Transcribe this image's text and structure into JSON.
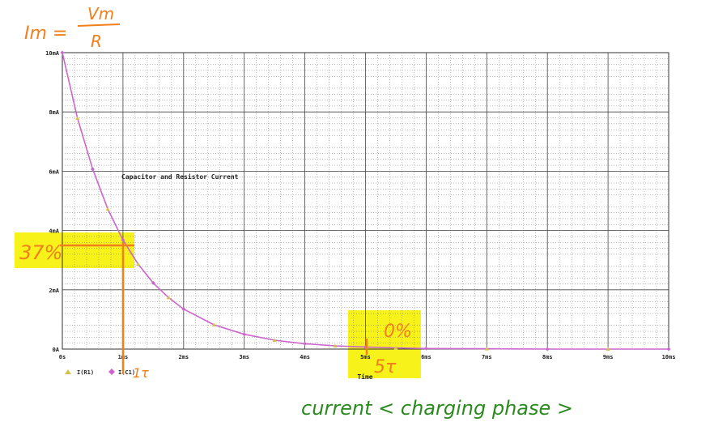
{
  "chart_data": {
    "type": "line",
    "title": "Capacitor and Resistor Current",
    "xlabel": "Time",
    "ylabel": "",
    "x_unit": "ms",
    "y_unit": "mA",
    "xlim": [
      0,
      10
    ],
    "ylim": [
      0,
      10
    ],
    "grid": true,
    "x_ticks": [
      "0s",
      "1ms",
      "2ms",
      "3ms",
      "4ms",
      "5ms",
      "6ms",
      "7ms",
      "8ms",
      "9ms",
      "10ms"
    ],
    "y_ticks": [
      "0A",
      "2mA",
      "4mA",
      "6mA",
      "8mA",
      "10mA"
    ],
    "legend": [
      {
        "label": "I(R1)",
        "color": "#d4c24a",
        "marker": "triangle"
      },
      {
        "label": "I(C1)",
        "color": "#cc66cc",
        "marker": "diamond"
      }
    ],
    "legend_position": "bottom-left",
    "series": [
      {
        "name": "I(C1)",
        "color": "#cc66cc",
        "x": [
          0,
          0.25,
          0.5,
          0.75,
          1,
          1.25,
          1.5,
          1.75,
          2,
          2.5,
          3,
          3.5,
          4,
          4.5,
          5,
          5.5,
          6,
          7,
          8,
          9,
          10
        ],
        "y": [
          10,
          7.79,
          6.07,
          4.72,
          3.68,
          2.87,
          2.23,
          1.74,
          1.35,
          0.82,
          0.5,
          0.3,
          0.18,
          0.11,
          0.07,
          0.04,
          0.02,
          0.01,
          0,
          0,
          0
        ]
      },
      {
        "name": "I(R1)",
        "color": "#d4c24a",
        "x": [
          0,
          0.25,
          0.5,
          0.75,
          1,
          1.25,
          1.5,
          1.75,
          2,
          2.5,
          3,
          3.5,
          4,
          4.5,
          5,
          5.5,
          6,
          7,
          8,
          9,
          10
        ],
        "y": [
          10,
          7.79,
          6.07,
          4.72,
          3.68,
          2.87,
          2.23,
          1.74,
          1.35,
          0.82,
          0.5,
          0.3,
          0.18,
          0.11,
          0.07,
          0.04,
          0.02,
          0.01,
          0,
          0,
          0
        ]
      }
    ],
    "annotations": {
      "formula_lhs": "Im =",
      "formula_num": "Vm",
      "formula_den": "R",
      "pct_37": "37%",
      "pct_0": "0%",
      "tau_1": "1τ",
      "tau_5": "5τ",
      "caption": "current < charging phase >",
      "color_orange": "#f07f1c",
      "color_green": "#2a8a1e",
      "highlight": "#f6f21a"
    }
  }
}
